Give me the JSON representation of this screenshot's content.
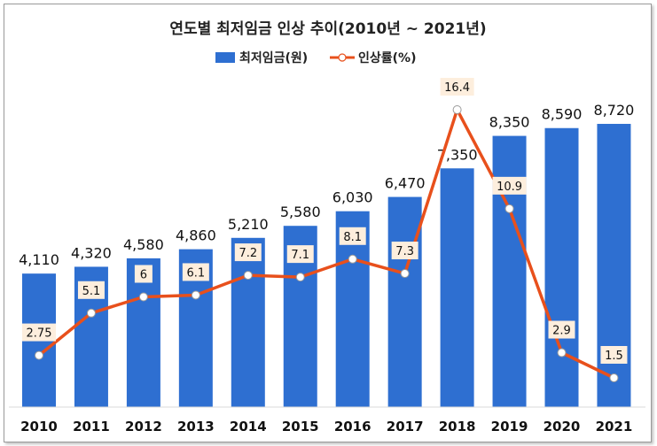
{
  "chart_data": {
    "type": "bar",
    "title": "연도별 최저임금 인상 추이(2010년 ~ 2021년)",
    "categories": [
      "2010",
      "2011",
      "2012",
      "2013",
      "2014",
      "2015",
      "2016",
      "2017",
      "2018",
      "2019",
      "2020",
      "2021"
    ],
    "series": [
      {
        "name": "최저임금(원)",
        "type": "bar",
        "color": "#2e6fd1",
        "values": [
          4110,
          4320,
          4580,
          4860,
          5210,
          5580,
          6030,
          6470,
          7350,
          8350,
          8590,
          8720
        ],
        "labels": [
          "4,110",
          "4,320",
          "4,580",
          "4,860",
          "5,210",
          "5,580",
          "6,030",
          "6,470",
          "7,350",
          "8,350",
          "8,590",
          "8,720"
        ]
      },
      {
        "name": "인상률(%)",
        "type": "line",
        "color": "#e8501c",
        "values": [
          2.75,
          5.1,
          6,
          6.1,
          7.2,
          7.1,
          8.1,
          7.3,
          16.4,
          10.9,
          2.9,
          1.5
        ],
        "labels": [
          "2.75",
          "5.1",
          "6",
          "6.1",
          "7.2",
          "7.1",
          "8.1",
          "7.3",
          "16.4",
          "10.9",
          "2.9",
          "1.5"
        ]
      }
    ],
    "legend": "top-center",
    "grid": false
  }
}
